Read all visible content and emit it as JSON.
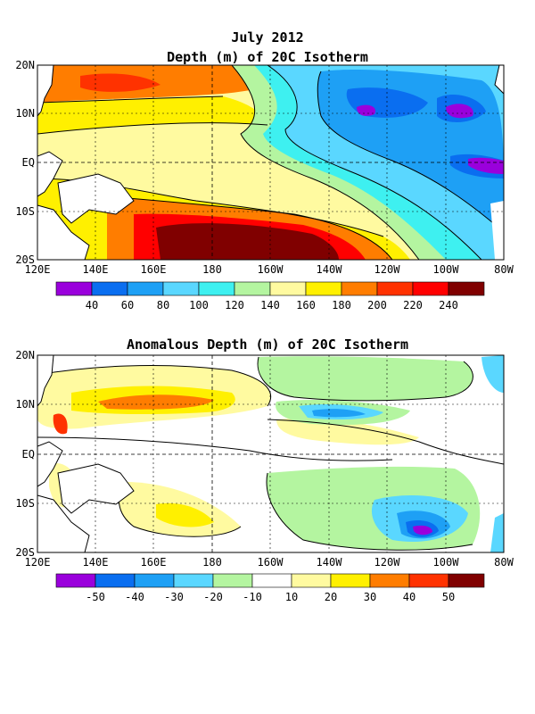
{
  "figure": {
    "title_line1": "July 2012",
    "panel1_title": "Depth (m) of 20C Isotherm",
    "panel2_title": "Anomalous Depth (m) of 20C Isotherm"
  },
  "axes": {
    "lon_ticks": [
      "120E",
      "140E",
      "160E",
      "180",
      "160W",
      "140W",
      "120W",
      "100W",
      "80W"
    ],
    "lat_ticks": [
      "20N",
      "10N",
      "EQ",
      "10S",
      "20S"
    ]
  },
  "legend_depth": {
    "labels": [
      "40",
      "60",
      "80",
      "100",
      "120",
      "140",
      "160",
      "180",
      "200",
      "220",
      "240"
    ],
    "colors": [
      "#9a00dc",
      "#0a6ef0",
      "#1ea0f5",
      "#5ad7ff",
      "#3ef0f0",
      "#b4f5a0",
      "#fffaa0",
      "#fff000",
      "#ff7d00",
      "#ff3200",
      "#ff0000",
      "#800000"
    ]
  },
  "legend_anomaly": {
    "labels": [
      "-50",
      "-40",
      "-30",
      "-20",
      "-10",
      "10",
      "20",
      "30",
      "40",
      "50"
    ],
    "colors": [
      "#9a00dc",
      "#0a6ef0",
      "#1ea0f5",
      "#5ad7ff",
      "#b4f5a0",
      "#ffffff",
      "#fffaa0",
      "#fff000",
      "#ff7d00",
      "#ff3200",
      "#800000"
    ]
  },
  "map_colors": {
    "land": "#ffffff",
    "coast": "#000000"
  }
}
